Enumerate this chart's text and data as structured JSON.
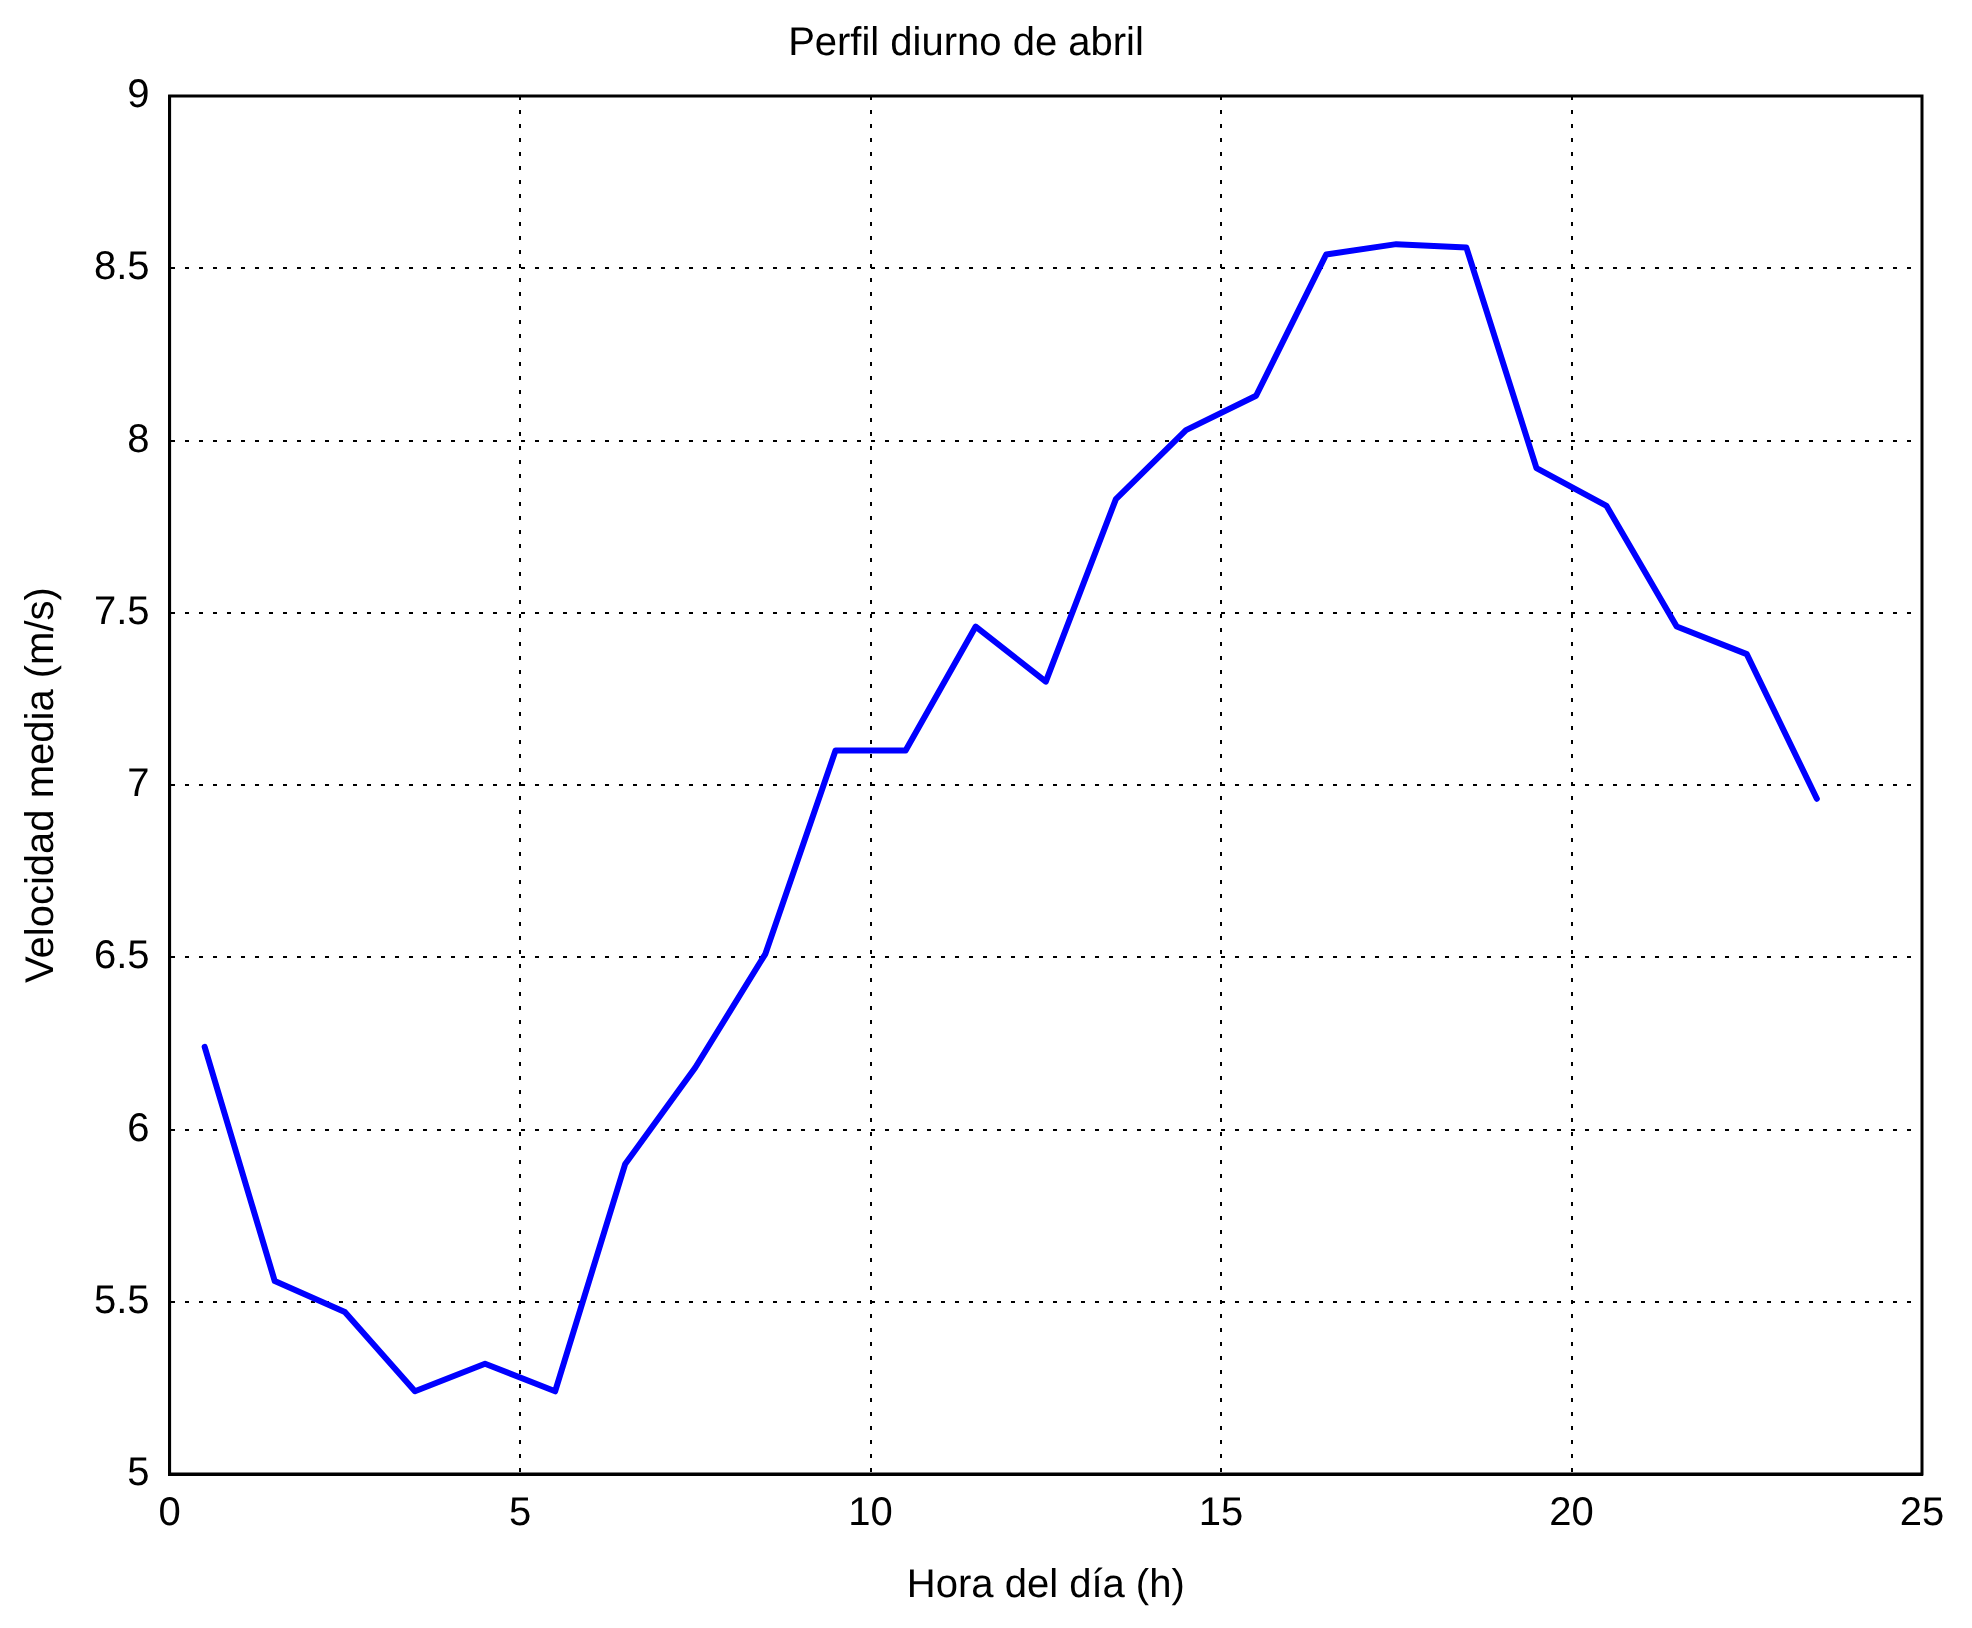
{
  "chart_data": {
    "type": "line",
    "title": "Perfil diurno de abril",
    "xlabel": "Hora del día (h)",
    "ylabel": "Velocidad media (m/s)",
    "x": [
      0.5,
      1.5,
      2.5,
      3.5,
      4.5,
      5.5,
      6.5,
      7.5,
      8.5,
      9.5,
      10.5,
      11.5,
      12.5,
      13.5,
      14.5,
      15.5,
      16.5,
      17.5,
      18.5,
      19.5,
      20.5,
      21.5,
      22.5,
      23.5
    ],
    "series": [
      {
        "color": "#0000ff",
        "values": [
          6.24,
          5.56,
          5.47,
          5.24,
          5.32,
          5.24,
          5.9,
          6.18,
          6.51,
          7.1,
          7.1,
          7.46,
          7.3,
          7.83,
          8.03,
          8.13,
          8.54,
          8.57,
          8.56,
          7.92,
          7.81,
          7.46,
          7.38,
          6.96
        ]
      }
    ],
    "xlim": [
      0,
      25
    ],
    "xticks": [
      0,
      5,
      10,
      15,
      20,
      25
    ],
    "ylim": [
      5,
      9
    ],
    "yticks": [
      5,
      5.5,
      6,
      6.5,
      7,
      7.5,
      8,
      8.5,
      9
    ],
    "grid": true,
    "legend": false,
    "marker": "none",
    "line_style": "solid"
  }
}
